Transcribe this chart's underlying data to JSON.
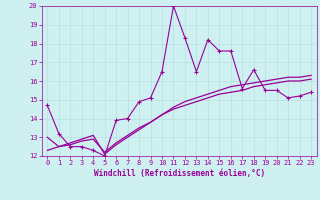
{
  "xlabel": "Windchill (Refroidissement éolien,°C)",
  "background_color": "#cef0f0",
  "grid_color": "#b8e0e0",
  "line_color": "#990099",
  "xlim": [
    -0.5,
    23.5
  ],
  "ylim": [
    12,
    20
  ],
  "yticks": [
    12,
    13,
    14,
    15,
    16,
    17,
    18,
    19,
    20
  ],
  "xticks": [
    0,
    1,
    2,
    3,
    4,
    5,
    6,
    7,
    8,
    9,
    10,
    11,
    12,
    13,
    14,
    15,
    16,
    17,
    18,
    19,
    20,
    21,
    22,
    23
  ],
  "line1_x": [
    0,
    1,
    2,
    3,
    4,
    5,
    6,
    7,
    8,
    9,
    10,
    11,
    12,
    13,
    14,
    15,
    16,
    17,
    18,
    19,
    20,
    21,
    22,
    23
  ],
  "line1_y": [
    14.7,
    13.2,
    12.5,
    12.5,
    12.3,
    12.0,
    13.9,
    14.0,
    14.9,
    15.1,
    16.5,
    20.0,
    18.3,
    16.5,
    18.2,
    17.6,
    17.6,
    15.6,
    16.6,
    15.5,
    15.5,
    15.1,
    15.2,
    15.4
  ],
  "line2_x": [
    0,
    1,
    2,
    3,
    4,
    5,
    6,
    7,
    8,
    9,
    10,
    11,
    12,
    13,
    14,
    15,
    16,
    17,
    18,
    19,
    20,
    21,
    22,
    23
  ],
  "line2_y": [
    13.0,
    12.5,
    12.6,
    12.8,
    12.9,
    12.2,
    12.7,
    13.1,
    13.5,
    13.8,
    14.2,
    14.5,
    14.7,
    14.9,
    15.1,
    15.3,
    15.4,
    15.5,
    15.7,
    15.8,
    15.9,
    16.0,
    16.0,
    16.1
  ],
  "line3_x": [
    0,
    1,
    2,
    3,
    4,
    5,
    6,
    7,
    8,
    9,
    10,
    11,
    12,
    13,
    14,
    15,
    16,
    17,
    18,
    19,
    20,
    21,
    22,
    23
  ],
  "line3_y": [
    12.3,
    12.5,
    12.7,
    12.9,
    13.1,
    12.1,
    12.6,
    13.0,
    13.4,
    13.8,
    14.2,
    14.6,
    14.9,
    15.1,
    15.3,
    15.5,
    15.7,
    15.8,
    15.9,
    16.0,
    16.1,
    16.2,
    16.2,
    16.3
  ]
}
